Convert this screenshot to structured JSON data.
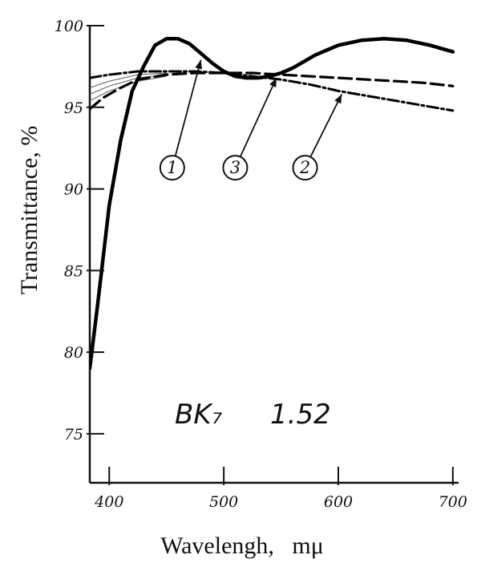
{
  "chart_data": {
    "type": "line",
    "title": "",
    "xlabel": "Wavelengh,   mμ",
    "ylabel": "Transmittance,   %",
    "xlim": [
      383,
      705
    ],
    "ylim": [
      72,
      100
    ],
    "x_ticks": [
      400,
      500,
      600,
      700
    ],
    "x_tick_labels": [
      "400",
      "500",
      "600",
      "700"
    ],
    "y_ticks": [
      75,
      80,
      85,
      90,
      95,
      100
    ],
    "y_tick_labels": [
      "75",
      "80",
      "85",
      "90",
      "95",
      "100"
    ],
    "grid": false,
    "annotation": {
      "material": "BK₇",
      "index": "1.52"
    },
    "series": [
      {
        "label": "1",
        "style": "solid-thick",
        "color": "#000000",
        "points": [
          [
            383,
            79
          ],
          [
            390,
            83
          ],
          [
            400,
            89
          ],
          [
            410,
            93
          ],
          [
            420,
            96
          ],
          [
            430,
            97.5
          ],
          [
            440,
            98.8
          ],
          [
            450,
            99.2
          ],
          [
            460,
            99.2
          ],
          [
            470,
            98.9
          ],
          [
            480,
            98.3
          ],
          [
            490,
            97.7
          ],
          [
            500,
            97.2
          ],
          [
            510,
            96.9
          ],
          [
            520,
            96.8
          ],
          [
            530,
            96.8
          ],
          [
            540,
            96.9
          ],
          [
            550,
            97.1
          ],
          [
            560,
            97.4
          ],
          [
            570,
            97.8
          ],
          [
            580,
            98.2
          ],
          [
            590,
            98.5
          ],
          [
            600,
            98.8
          ],
          [
            620,
            99.1
          ],
          [
            640,
            99.2
          ],
          [
            660,
            99.1
          ],
          [
            680,
            98.8
          ],
          [
            700,
            98.4
          ]
        ]
      },
      {
        "label": "2",
        "style": "dash-dot",
        "color": "#000000",
        "points": [
          [
            383,
            96.8
          ],
          [
            400,
            97.0
          ],
          [
            425,
            97.2
          ],
          [
            450,
            97.2
          ],
          [
            475,
            97.2
          ],
          [
            500,
            97.1
          ],
          [
            525,
            96.9
          ],
          [
            550,
            96.7
          ],
          [
            575,
            96.4
          ],
          [
            600,
            96.0
          ],
          [
            625,
            95.7
          ],
          [
            650,
            95.4
          ],
          [
            675,
            95.1
          ],
          [
            700,
            94.8
          ]
        ]
      },
      {
        "label": "3",
        "style": "dashed",
        "color": "#000000",
        "points": [
          [
            383,
            94.9
          ],
          [
            395,
            95.6
          ],
          [
            410,
            96.2
          ],
          [
            425,
            96.7
          ],
          [
            450,
            97.0
          ],
          [
            475,
            97.1
          ],
          [
            500,
            97.1
          ],
          [
            525,
            97.1
          ],
          [
            550,
            97.0
          ],
          [
            575,
            96.9
          ],
          [
            600,
            96.8
          ],
          [
            625,
            96.7
          ],
          [
            650,
            96.6
          ],
          [
            675,
            96.5
          ],
          [
            700,
            96.3
          ]
        ]
      }
    ],
    "faint_curves": [
      [
        [
          383,
          96.2
        ],
        [
          400,
          96.6
        ],
        [
          425,
          97.0
        ],
        [
          450,
          97.1
        ]
      ],
      [
        [
          383,
          95.8
        ],
        [
          400,
          96.3
        ],
        [
          425,
          96.8
        ],
        [
          450,
          97.0
        ]
      ],
      [
        [
          383,
          95.4
        ],
        [
          400,
          96.0
        ],
        [
          425,
          96.6
        ],
        [
          450,
          96.9
        ]
      ]
    ],
    "markers": [
      {
        "label": "1",
        "circle": [
          455,
          91.3
        ],
        "target": [
          480,
          97.9
        ]
      },
      {
        "label": "3",
        "circle": [
          510,
          91.3
        ],
        "target": [
          546,
          96.8
        ]
      },
      {
        "label": "2",
        "circle": [
          571,
          91.3
        ],
        "target": [
          603,
          95.8
        ]
      }
    ]
  }
}
